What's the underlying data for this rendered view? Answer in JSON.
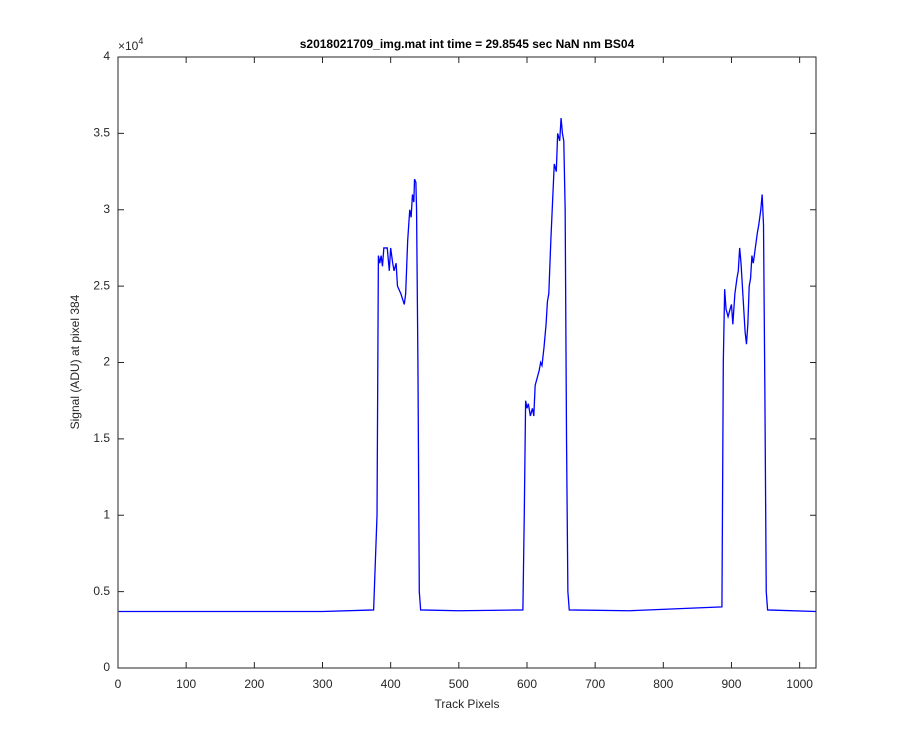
{
  "chart_data": {
    "type": "line",
    "title": "s2018021709_img.mat int time = 29.8545 sec  NaN nm BS04",
    "x_label": "Track Pixels",
    "y_label": "Signal (ADU) at pixel 384",
    "y_exponent": {
      "base": "×10",
      "power": "4"
    },
    "xlim": [
      0,
      1024
    ],
    "ylim": [
      0,
      40000
    ],
    "xticks": [
      0,
      100,
      200,
      300,
      400,
      500,
      600,
      700,
      800,
      900,
      1000
    ],
    "yticks": [
      {
        "value": 0,
        "label": "0"
      },
      {
        "value": 5000,
        "label": "0.5"
      },
      {
        "value": 10000,
        "label": "1"
      },
      {
        "value": 15000,
        "label": "1.5"
      },
      {
        "value": 20000,
        "label": "2"
      },
      {
        "value": 25000,
        "label": "2.5"
      },
      {
        "value": 30000,
        "label": "3"
      },
      {
        "value": 35000,
        "label": "3.5"
      },
      {
        "value": 40000,
        "label": "4"
      }
    ],
    "series": [
      {
        "color": "#0000ff",
        "x": [
          1,
          100,
          200,
          300,
          375,
          380,
          382,
          384,
          386,
          388,
          390,
          395,
          398,
          400,
          403,
          405,
          408,
          410,
          415,
          420,
          422,
          425,
          428,
          430,
          432,
          434,
          435,
          437,
          438,
          440,
          442,
          444,
          500,
          594,
          596,
          598,
          600,
          602,
          605,
          608,
          610,
          612,
          615,
          618,
          620,
          622,
          625,
          628,
          630,
          632,
          635,
          638,
          640,
          643,
          645,
          648,
          650,
          652,
          654,
          656,
          658,
          660,
          662,
          750,
          886,
          888,
          890,
          892,
          895,
          898,
          900,
          902,
          905,
          908,
          910,
          912,
          914,
          916,
          918,
          920,
          922,
          924,
          926,
          928,
          930,
          932,
          935,
          938,
          940,
          943,
          945,
          947,
          949,
          951,
          953,
          1024
        ],
        "values": [
          3700,
          3700,
          3700,
          3700,
          3800,
          10000,
          27000,
          26500,
          27000,
          26300,
          27500,
          27500,
          26000,
          27500,
          26500,
          26000,
          26500,
          25000,
          24500,
          23800,
          24500,
          28000,
          30000,
          29500,
          31000,
          30500,
          32000,
          31800,
          30000,
          20000,
          5000,
          3800,
          3750,
          3800,
          10000,
          17500,
          17000,
          17300,
          16500,
          17000,
          16500,
          18500,
          19000,
          19500,
          20000,
          19800,
          21000,
          22500,
          24000,
          24500,
          28000,
          31000,
          33000,
          32500,
          35000,
          34500,
          36000,
          35000,
          34500,
          30000,
          15000,
          5000,
          3800,
          3750,
          4000,
          20000,
          24800,
          23500,
          23000,
          23500,
          23800,
          22500,
          24500,
          25500,
          26000,
          27500,
          26500,
          25000,
          23500,
          22000,
          21200,
          22500,
          25000,
          25500,
          27000,
          26500,
          27500,
          28500,
          29000,
          30000,
          31000,
          29000,
          18000,
          5000,
          3800,
          3700
        ]
      }
    ]
  }
}
